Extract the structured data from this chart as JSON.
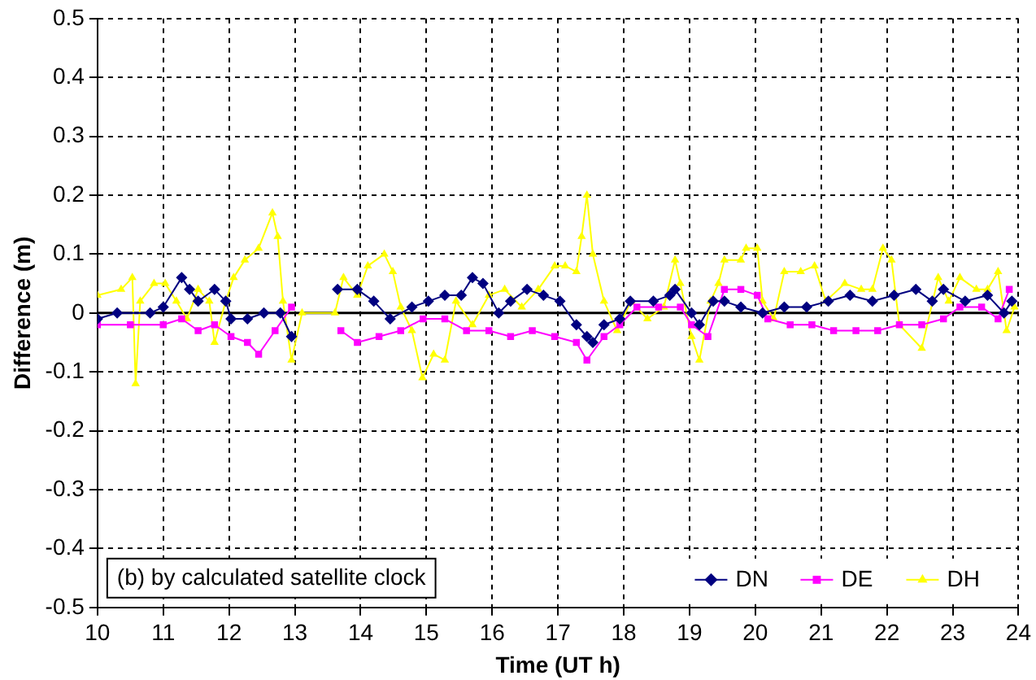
{
  "chart_data": {
    "type": "line",
    "xlabel": "Time (UT h)",
    "ylabel": "Difference (m)",
    "xlim": [
      10,
      24
    ],
    "xticks": [
      10,
      11,
      12,
      13,
      14,
      15,
      16,
      17,
      18,
      19,
      20,
      21,
      22,
      23,
      24
    ],
    "ylim": [
      -0.5,
      0.5
    ],
    "yticks": [
      -0.5,
      -0.4,
      -0.3,
      -0.2,
      -0.1,
      0,
      0.1,
      0.2,
      0.3,
      0.4,
      0.5
    ],
    "grid": true,
    "legend": "bottom right",
    "line_style": "solid",
    "annotations": [
      "(b) by calculated satellite clock"
    ],
    "ref_lines": [
      {
        "axis": "y",
        "value": 0,
        "color": "#000000"
      }
    ],
    "series": [
      {
        "name": "DN",
        "color": "#000080",
        "marker": "diamond",
        "x": [
          10.0,
          10.3,
          10.8,
          11.0,
          11.28,
          11.4,
          11.53,
          11.78,
          11.95,
          12.03,
          12.28,
          12.53,
          12.78,
          12.95,
          13.3,
          13.65,
          13.95,
          14.2,
          14.45,
          14.78,
          15.03,
          15.28,
          15.53,
          15.7,
          15.86,
          16.1,
          16.28,
          16.53,
          16.78,
          17.03,
          17.28,
          17.44,
          17.53,
          17.7,
          17.94,
          18.1,
          18.45,
          18.7,
          18.78,
          19.03,
          19.15,
          19.36,
          19.53,
          19.78,
          20.11,
          20.44,
          20.78,
          21.11,
          21.44,
          21.78,
          22.11,
          22.44,
          22.69,
          22.86,
          23.19,
          23.53,
          23.78,
          23.9
        ],
        "values": [
          -0.01,
          0.0,
          0.0,
          0.01,
          0.06,
          0.04,
          0.02,
          0.04,
          0.02,
          -0.01,
          -0.01,
          0.0,
          0.0,
          -0.04,
          null,
          0.04,
          0.04,
          0.02,
          -0.01,
          0.01,
          0.02,
          0.03,
          0.03,
          0.06,
          0.05,
          0.0,
          0.02,
          0.04,
          0.03,
          0.02,
          -0.02,
          -0.04,
          -0.05,
          -0.02,
          -0.01,
          0.02,
          0.02,
          0.03,
          0.04,
          0.0,
          -0.02,
          0.02,
          0.02,
          0.01,
          0.0,
          0.01,
          0.01,
          0.02,
          0.03,
          0.02,
          0.03,
          0.04,
          0.02,
          0.04,
          0.02,
          0.03,
          0.0,
          0.02
        ]
      },
      {
        "name": "DE",
        "color": "#ff00ff",
        "marker": "square",
        "x": [
          10.0,
          10.5,
          11.0,
          11.28,
          11.53,
          11.78,
          12.03,
          12.28,
          12.45,
          12.7,
          12.95,
          13.3,
          13.7,
          13.95,
          14.28,
          14.61,
          14.95,
          15.28,
          15.61,
          15.95,
          16.28,
          16.61,
          16.95,
          17.28,
          17.44,
          17.7,
          17.94,
          18.2,
          18.53,
          18.86,
          19.03,
          19.28,
          19.53,
          19.78,
          20.03,
          20.19,
          20.53,
          20.86,
          21.19,
          21.53,
          21.86,
          22.19,
          22.53,
          22.86,
          23.11,
          23.44,
          23.69,
          23.86
        ],
        "values": [
          -0.02,
          -0.02,
          -0.02,
          -0.01,
          -0.03,
          -0.02,
          -0.04,
          -0.05,
          -0.07,
          -0.03,
          0.01,
          null,
          -0.03,
          -0.05,
          -0.04,
          -0.03,
          -0.01,
          -0.01,
          -0.03,
          -0.03,
          -0.04,
          -0.03,
          -0.04,
          -0.05,
          -0.08,
          -0.04,
          -0.02,
          0.01,
          0.01,
          0.01,
          -0.02,
          -0.04,
          0.04,
          0.04,
          0.03,
          -0.01,
          -0.02,
          -0.02,
          -0.03,
          -0.03,
          -0.03,
          -0.02,
          -0.02,
          -0.01,
          0.01,
          0.01,
          -0.01,
          0.04
        ]
      },
      {
        "name": "DH",
        "color": "#ffff00",
        "marker": "triangle",
        "x": [
          10.0,
          10.36,
          10.53,
          10.58,
          10.65,
          10.86,
          11.03,
          11.2,
          11.36,
          11.53,
          11.7,
          11.78,
          11.95,
          12.07,
          12.24,
          12.45,
          12.66,
          12.74,
          12.82,
          12.95,
          13.11,
          13.61,
          13.74,
          13.95,
          14.11,
          14.36,
          14.49,
          14.61,
          14.78,
          14.94,
          15.11,
          15.28,
          15.45,
          15.7,
          15.95,
          16.19,
          16.45,
          16.7,
          16.95,
          17.11,
          17.28,
          17.36,
          17.44,
          17.53,
          17.7,
          17.9,
          18.11,
          18.36,
          18.61,
          18.78,
          18.86,
          19.03,
          19.15,
          19.32,
          19.44,
          19.53,
          19.78,
          19.86,
          20.03,
          20.11,
          20.28,
          20.44,
          20.69,
          20.9,
          21.07,
          21.36,
          21.61,
          21.78,
          21.94,
          22.07,
          22.19,
          22.53,
          22.78,
          22.94,
          23.11,
          23.36,
          23.53,
          23.69,
          23.82,
          23.94
        ],
        "values": [
          0.03,
          0.04,
          0.06,
          -0.12,
          0.02,
          0.05,
          0.05,
          0.02,
          -0.01,
          0.04,
          0.02,
          -0.05,
          0.02,
          0.06,
          0.09,
          0.11,
          0.17,
          0.13,
          0.02,
          -0.08,
          0.0,
          0.0,
          0.06,
          0.03,
          0.08,
          0.1,
          0.07,
          0.01,
          -0.03,
          -0.11,
          -0.07,
          -0.08,
          0.02,
          -0.02,
          0.03,
          0.04,
          0.01,
          0.04,
          0.08,
          0.08,
          0.07,
          0.13,
          0.2,
          0.1,
          0.02,
          -0.03,
          0.02,
          -0.01,
          0.01,
          0.09,
          0.05,
          -0.04,
          -0.08,
          0.02,
          0.05,
          0.09,
          0.09,
          0.11,
          0.11,
          0.02,
          -0.01,
          0.07,
          0.07,
          0.08,
          0.02,
          0.05,
          0.04,
          0.04,
          0.11,
          0.09,
          -0.02,
          -0.06,
          0.06,
          0.02,
          0.06,
          0.04,
          0.04,
          0.07,
          -0.03,
          0.01
        ]
      }
    ]
  }
}
